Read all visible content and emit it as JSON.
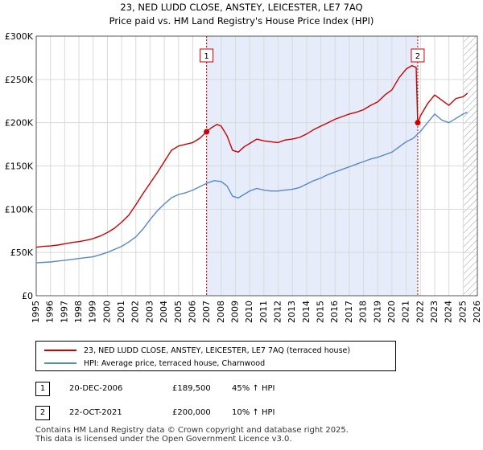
{
  "chart_data": {
    "type": "line",
    "title": "23, NED LUDD CLOSE, ANSTEY, LEICESTER, LE7 7AQ",
    "subtitle": "Price paid vs. HM Land Registry's House Price Index (HPI)",
    "xlim": [
      1995.0,
      2026.0
    ],
    "ylim": [
      0,
      300000
    ],
    "x_ticks": [
      "1995",
      "1996",
      "1997",
      "1998",
      "1999",
      "2000",
      "2001",
      "2002",
      "2003",
      "2004",
      "2005",
      "2006",
      "2007",
      "2008",
      "2009",
      "2010",
      "2011",
      "2012",
      "2013",
      "2014",
      "2015",
      "2016",
      "2017",
      "2018",
      "2019",
      "2020",
      "2021",
      "2022",
      "2023",
      "2024",
      "2025",
      "2026"
    ],
    "y_ticks": [
      {
        "value": 0,
        "label": "£0"
      },
      {
        "value": 50000,
        "label": "£50K"
      },
      {
        "value": 100000,
        "label": "£100K"
      },
      {
        "value": 150000,
        "label": "£150K"
      },
      {
        "value": 200000,
        "label": "£200K"
      },
      {
        "value": 250000,
        "label": "£250K"
      },
      {
        "value": 300000,
        "label": "£300K"
      }
    ],
    "grid": true,
    "shaded_period": [
      2006.97,
      2021.81
    ],
    "future_hatch_from": 2025.0,
    "series": [
      {
        "name": "23, NED LUDD CLOSE, ANSTEY, LEICESTER, LE7 7AQ (terraced house)",
        "color": "#cc0000",
        "points": [
          [
            1995.0,
            56000
          ],
          [
            1995.5,
            57000
          ],
          [
            1996.0,
            57500
          ],
          [
            1996.5,
            58500
          ],
          [
            1997.0,
            60000
          ],
          [
            1997.5,
            61500
          ],
          [
            1998.0,
            62500
          ],
          [
            1998.5,
            64000
          ],
          [
            1999.0,
            66000
          ],
          [
            1999.5,
            69000
          ],
          [
            2000.0,
            73000
          ],
          [
            2000.5,
            78000
          ],
          [
            2001.0,
            85000
          ],
          [
            2001.5,
            93000
          ],
          [
            2002.0,
            105000
          ],
          [
            2002.5,
            118000
          ],
          [
            2003.0,
            130000
          ],
          [
            2003.5,
            142000
          ],
          [
            2004.0,
            155000
          ],
          [
            2004.5,
            168000
          ],
          [
            2005.0,
            173000
          ],
          [
            2005.5,
            175000
          ],
          [
            2006.0,
            177000
          ],
          [
            2006.5,
            182000
          ],
          [
            2006.97,
            189500
          ],
          [
            2007.3,
            194000
          ],
          [
            2007.7,
            198000
          ],
          [
            2008.0,
            196000
          ],
          [
            2008.4,
            185000
          ],
          [
            2008.8,
            168000
          ],
          [
            2009.2,
            166000
          ],
          [
            2009.6,
            172000
          ],
          [
            2010.0,
            176000
          ],
          [
            2010.5,
            181000
          ],
          [
            2011.0,
            179000
          ],
          [
            2011.5,
            178000
          ],
          [
            2012.0,
            177000
          ],
          [
            2012.5,
            180000
          ],
          [
            2013.0,
            181000
          ],
          [
            2013.5,
            183000
          ],
          [
            2014.0,
            187000
          ],
          [
            2014.5,
            192000
          ],
          [
            2015.0,
            196000
          ],
          [
            2015.5,
            200000
          ],
          [
            2016.0,
            204000
          ],
          [
            2016.5,
            207000
          ],
          [
            2017.0,
            210000
          ],
          [
            2017.5,
            212000
          ],
          [
            2018.0,
            215000
          ],
          [
            2018.5,
            220000
          ],
          [
            2019.0,
            224000
          ],
          [
            2019.5,
            232000
          ],
          [
            2020.0,
            238000
          ],
          [
            2020.5,
            252000
          ],
          [
            2021.0,
            262000
          ],
          [
            2021.4,
            266000
          ],
          [
            2021.7,
            264000
          ],
          [
            2021.81,
            200000
          ],
          [
            2022.0,
            208000
          ],
          [
            2022.5,
            222000
          ],
          [
            2023.0,
            232000
          ],
          [
            2023.5,
            226000
          ],
          [
            2024.0,
            220000
          ],
          [
            2024.5,
            228000
          ],
          [
            2025.0,
            230000
          ],
          [
            2025.3,
            234000
          ]
        ]
      },
      {
        "name": "HPI: Average price, terraced house, Charnwood",
        "color": "#5588cc",
        "points": [
          [
            1995.0,
            38000
          ],
          [
            1995.5,
            38500
          ],
          [
            1996.0,
            39000
          ],
          [
            1996.5,
            40000
          ],
          [
            1997.0,
            41000
          ],
          [
            1997.5,
            42000
          ],
          [
            1998.0,
            43000
          ],
          [
            1998.5,
            44000
          ],
          [
            1999.0,
            45000
          ],
          [
            1999.5,
            47500
          ],
          [
            2000.0,
            50000
          ],
          [
            2000.5,
            53500
          ],
          [
            2001.0,
            57000
          ],
          [
            2001.5,
            62000
          ],
          [
            2002.0,
            68000
          ],
          [
            2002.5,
            77000
          ],
          [
            2003.0,
            88000
          ],
          [
            2003.5,
            98000
          ],
          [
            2004.0,
            106000
          ],
          [
            2004.5,
            113000
          ],
          [
            2005.0,
            117000
          ],
          [
            2005.5,
            119000
          ],
          [
            2006.0,
            122000
          ],
          [
            2006.5,
            126000
          ],
          [
            2007.0,
            130000
          ],
          [
            2007.5,
            133000
          ],
          [
            2008.0,
            132000
          ],
          [
            2008.4,
            127000
          ],
          [
            2008.8,
            115000
          ],
          [
            2009.2,
            113000
          ],
          [
            2009.6,
            117000
          ],
          [
            2010.0,
            121000
          ],
          [
            2010.5,
            124000
          ],
          [
            2011.0,
            122000
          ],
          [
            2011.5,
            121000
          ],
          [
            2012.0,
            121000
          ],
          [
            2012.5,
            122000
          ],
          [
            2013.0,
            123000
          ],
          [
            2013.5,
            125000
          ],
          [
            2014.0,
            129000
          ],
          [
            2014.5,
            133000
          ],
          [
            2015.0,
            136000
          ],
          [
            2015.5,
            140000
          ],
          [
            2016.0,
            143000
          ],
          [
            2016.5,
            146000
          ],
          [
            2017.0,
            149000
          ],
          [
            2017.5,
            152000
          ],
          [
            2018.0,
            155000
          ],
          [
            2018.5,
            158000
          ],
          [
            2019.0,
            160000
          ],
          [
            2019.5,
            163000
          ],
          [
            2020.0,
            166000
          ],
          [
            2020.5,
            172000
          ],
          [
            2021.0,
            178000
          ],
          [
            2021.5,
            182000
          ],
          [
            2022.0,
            190000
          ],
          [
            2022.5,
            200000
          ],
          [
            2023.0,
            210000
          ],
          [
            2023.5,
            203000
          ],
          [
            2024.0,
            200000
          ],
          [
            2024.5,
            205000
          ],
          [
            2025.0,
            210000
          ],
          [
            2025.3,
            212000
          ]
        ]
      }
    ],
    "sales": [
      {
        "num": "1",
        "x": 2006.97,
        "y": 189500
      },
      {
        "num": "2",
        "x": 2021.81,
        "y": 200000
      }
    ]
  },
  "legend": {
    "property_label": "23, NED LUDD CLOSE, ANSTEY, LEICESTER, LE7 7AQ (terraced house)",
    "hpi_label": "HPI: Average price, terraced house, Charnwood",
    "property_color": "#cc0000",
    "hpi_color": "#5588cc"
  },
  "sales_table": [
    {
      "num": "1",
      "date": "20-DEC-2006",
      "price": "£189,500",
      "hpi": "45% ↑ HPI"
    },
    {
      "num": "2",
      "date": "22-OCT-2021",
      "price": "£200,000",
      "hpi": "10% ↑ HPI"
    }
  ],
  "footer": {
    "line1": "Contains HM Land Registry data © Crown copyright and database right 2025.",
    "line2": "This data is licensed under the Open Government Licence v3.0."
  }
}
